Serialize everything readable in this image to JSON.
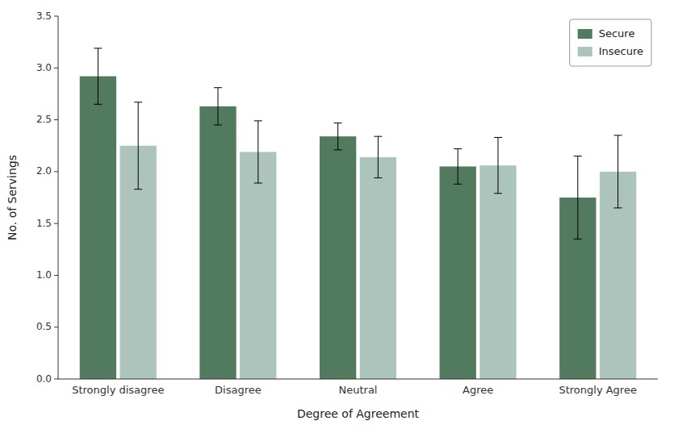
{
  "chart_data": {
    "type": "bar",
    "xlabel": "Degree of Agreement",
    "ylabel": "No. of Servings",
    "categories": [
      "Strongly disagree",
      "Disagree",
      "Neutral",
      "Agree",
      "Strongly Agree"
    ],
    "series": [
      {
        "name": "Secure",
        "color": "#527a5f",
        "values": [
          2.92,
          2.63,
          2.34,
          2.05,
          1.75
        ],
        "errors": [
          0.27,
          0.18,
          0.13,
          0.17,
          0.4
        ]
      },
      {
        "name": "Insecure",
        "color": "#adc4bc",
        "values": [
          2.25,
          2.19,
          2.14,
          2.06,
          2.0
        ],
        "errors": [
          0.42,
          0.3,
          0.2,
          0.27,
          0.35
        ]
      }
    ],
    "ylim": [
      0,
      3.5
    ],
    "yticks": [
      {
        "value": 0,
        "label": "0.0"
      },
      0.5,
      {
        "value": 1,
        "label": "1.0"
      },
      1.5,
      {
        "value": 2,
        "label": "2.0"
      },
      2.5,
      {
        "value": 3,
        "label": "3.0"
      },
      3.5
    ],
    "grid": false,
    "legend": "upper right"
  }
}
